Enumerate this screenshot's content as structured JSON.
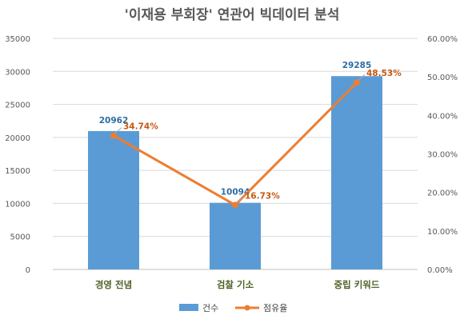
{
  "chart_data": {
    "type": "bar",
    "title": "'이재용 부회장' 연관어 빅데이터 분석",
    "categories": [
      "경영 전념",
      "검찰 기소",
      "중립 키워드"
    ],
    "series": [
      {
        "name": "건수",
        "type": "bar",
        "axis": "left",
        "values": [
          20962,
          10094,
          29285
        ],
        "color": "#5b9bd5",
        "label_color": "#2e6da4"
      },
      {
        "name": "점유율",
        "type": "line",
        "axis": "right",
        "values": [
          34.74,
          16.73,
          48.53
        ],
        "labels": [
          "34.74%",
          "16.73%",
          "48.53%"
        ],
        "color": "#ed7d31",
        "label_color": "#c55a11"
      }
    ],
    "y_left": {
      "ticks": [
        "0",
        "5000",
        "10000",
        "15000",
        "20000",
        "25000",
        "30000",
        "35000"
      ],
      "min": 0,
      "max": 35000
    },
    "y_right": {
      "ticks": [
        "0.00%",
        "10.00%",
        "20.00%",
        "30.00%",
        "40.00%",
        "50.00%",
        "60.00%"
      ],
      "min": 0,
      "max": 60
    },
    "category_label_color": "#4f6228",
    "grid": true,
    "legend_position": "bottom"
  }
}
